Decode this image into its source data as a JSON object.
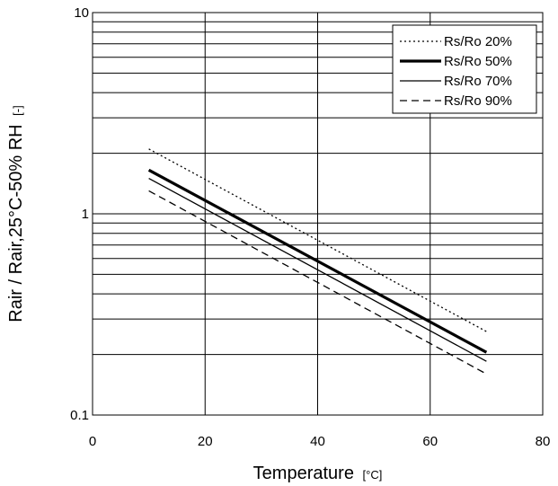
{
  "chart_data": {
    "type": "line",
    "title": "",
    "xlabel": "Temperature",
    "xlabel_unit": "[°C]",
    "ylabel": "Rair / Rair,25°C-50% RH",
    "ylabel_unit": "[-]",
    "xlim": [
      0,
      80
    ],
    "ylim": [
      0.1,
      10
    ],
    "y_scale": "log",
    "x_ticks": [
      "0",
      "20",
      "40",
      "60",
      "80"
    ],
    "y_ticks": [
      "0.1",
      "1",
      "10"
    ],
    "grid": true,
    "legend_position": "top-right",
    "series": [
      {
        "name": "Rs/Ro 20%",
        "style": "dotted",
        "x": [
          10,
          70
        ],
        "y": [
          2.1,
          0.26
        ]
      },
      {
        "name": "Rs/Ro 50%",
        "style": "solid-thick",
        "x": [
          10,
          70
        ],
        "y": [
          1.65,
          0.205
        ]
      },
      {
        "name": "Rs/Ro 70%",
        "style": "solid-thin",
        "x": [
          10,
          70
        ],
        "y": [
          1.5,
          0.185
        ]
      },
      {
        "name": "Rs/Ro 90%",
        "style": "dashed",
        "x": [
          10,
          70
        ],
        "y": [
          1.3,
          0.16
        ]
      }
    ]
  }
}
